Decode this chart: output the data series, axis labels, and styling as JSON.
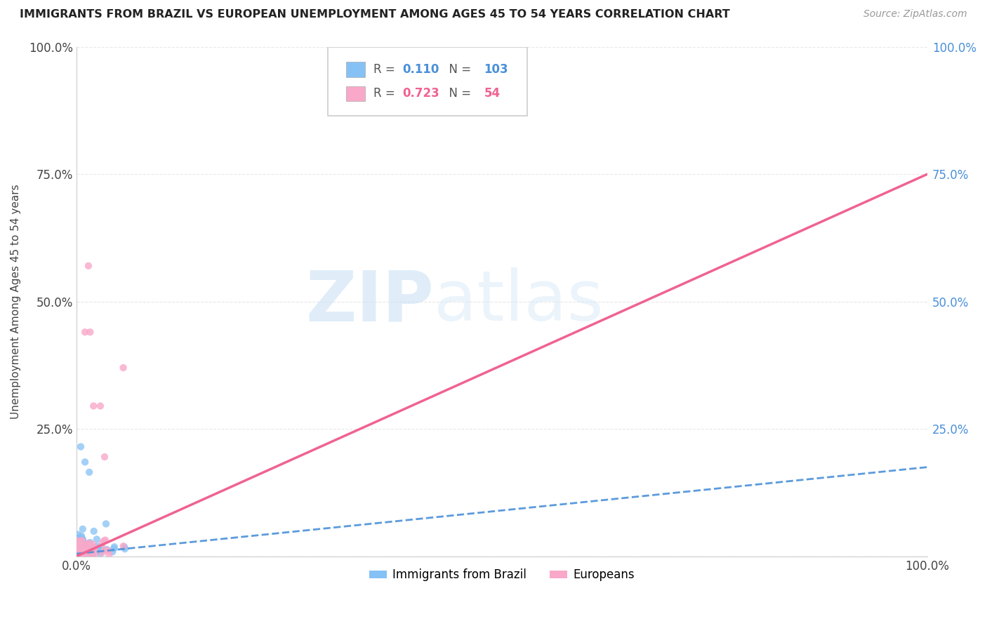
{
  "title": "IMMIGRANTS FROM BRAZIL VS EUROPEAN UNEMPLOYMENT AMONG AGES 45 TO 54 YEARS CORRELATION CHART",
  "source": "Source: ZipAtlas.com",
  "ylabel": "Unemployment Among Ages 45 to 54 years",
  "xlim": [
    0,
    1.0
  ],
  "ylim": [
    0,
    1.0
  ],
  "ytick_positions": [
    0.0,
    0.25,
    0.5,
    0.75,
    1.0
  ],
  "ytick_labels": [
    "",
    "25.0%",
    "50.0%",
    "75.0%",
    "100.0%"
  ],
  "grid_color": "#e8e8e8",
  "background_color": "#ffffff",
  "brazil_R": 0.11,
  "brazil_N": 103,
  "europe_R": 0.723,
  "europe_N": 54,
  "brazil_color": "#85c1f5",
  "europe_color": "#f9a8c9",
  "brazil_line_color": "#4a90d9",
  "europe_line_color": "#f06292",
  "legend_items": [
    "Immigrants from Brazil",
    "Europeans"
  ],
  "legend_colors": [
    "#85c1f5",
    "#f9a8c9"
  ],
  "brazil_text_color": "#4a90d9",
  "europe_text_color": "#f06292",
  "europe_line_x0": 0.0,
  "europe_line_y0": 0.0,
  "europe_line_x1": 1.0,
  "europe_line_y1": 0.75,
  "brazil_line_x0": 0.0,
  "brazil_line_y0": 0.005,
  "brazil_line_x1": 1.0,
  "brazil_line_y1": 0.175
}
